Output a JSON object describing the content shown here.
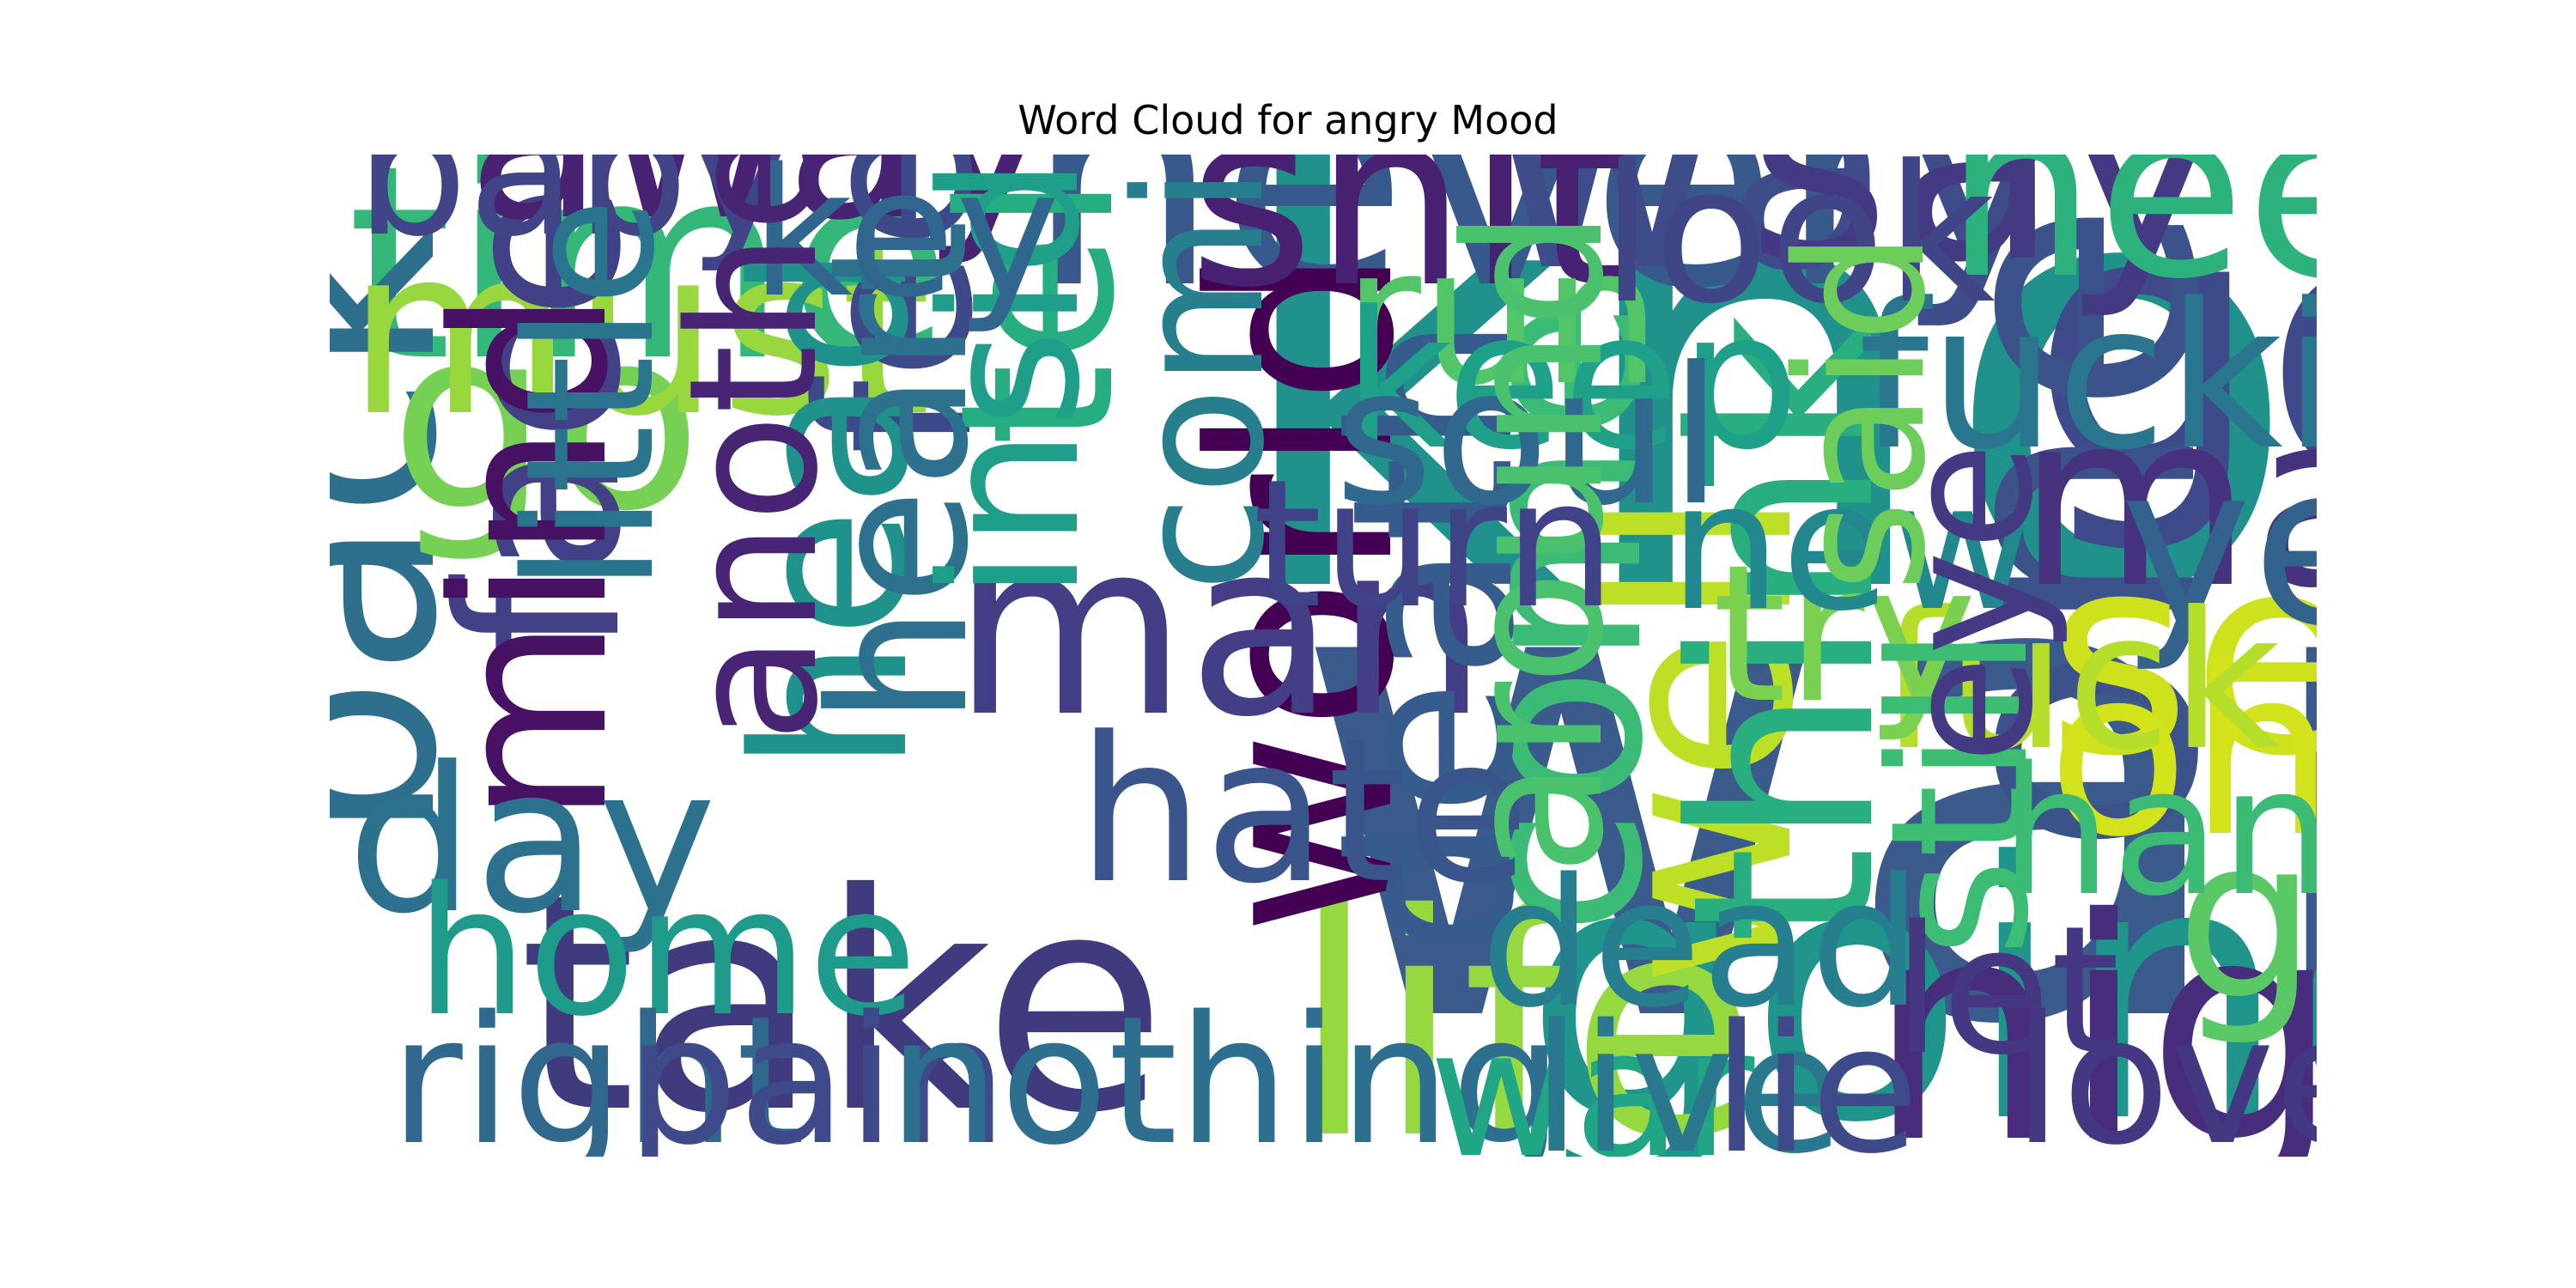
{
  "chart_data": {
    "type": "wordcloud",
    "title": "Word Cloud for angry Mood",
    "words": [
      {
        "text": "want",
        "weight": 100,
        "color": "#3b5b8c"
      },
      {
        "text": "know",
        "weight": 78,
        "color": "#21918c"
      },
      {
        "text": "got",
        "weight": 30,
        "color": "#3e4a89"
      },
      {
        "text": "one",
        "weight": 28,
        "color": "#3b528b"
      },
      {
        "text": "going",
        "weight": 28,
        "color": "#1f958b"
      },
      {
        "text": "never",
        "weight": 21,
        "color": "#38598c"
      },
      {
        "text": "life",
        "weight": 21,
        "color": "#95d840"
      },
      {
        "text": "night",
        "weight": 21,
        "color": "#472d7b"
      },
      {
        "text": "take",
        "weight": 20,
        "color": "#3f3b7e"
      },
      {
        "text": "way",
        "weight": 18,
        "color": "#3e4c8a"
      },
      {
        "text": "say",
        "weight": 17,
        "color": "#443983"
      },
      {
        "text": "see",
        "weight": 17,
        "color": "#cde11d"
      },
      {
        "text": "time",
        "weight": 16,
        "color": "#35b779"
      },
      {
        "text": "back",
        "weight": 15,
        "color": "#2e6f8e"
      },
      {
        "text": "go",
        "weight": 14,
        "color": "#75d054"
      },
      {
        "text": "world",
        "weight": 14,
        "color": "#440154"
      },
      {
        "text": "well",
        "weight": 14,
        "color": "#bddf26"
      },
      {
        "text": "think",
        "weight": 14,
        "color": "#29af7f"
      },
      {
        "text": "shit",
        "weight": 13,
        "color": "#482173"
      },
      {
        "text": "need",
        "weight": 13,
        "color": "#2db27d"
      },
      {
        "text": "make",
        "weight": 13,
        "color": "#46327e"
      },
      {
        "text": "man",
        "weight": 13,
        "color": "#433e85"
      },
      {
        "text": "must",
        "weight": 12,
        "color": "#98d83e"
      },
      {
        "text": "come",
        "weight": 12,
        "color": "#3bbb75"
      },
      {
        "text": "oh",
        "weight": 12,
        "color": "#d2e21b"
      },
      {
        "text": "face",
        "weight": 11,
        "color": "#424086"
      },
      {
        "text": "away",
        "weight": 11,
        "color": "#482374"
      },
      {
        "text": "death",
        "weight": 11,
        "color": "#365c8d"
      },
      {
        "text": "yeah",
        "weight": 11,
        "color": "#33638d"
      },
      {
        "text": "god",
        "weight": 11,
        "color": "#5ac864"
      },
      {
        "text": "feel",
        "weight": 10,
        "color": "#3e4989"
      },
      {
        "text": "tell",
        "weight": 10,
        "color": "#26ad81"
      },
      {
        "text": "head",
        "weight": 10,
        "color": "#20928c"
      },
      {
        "text": "mind",
        "weight": 10,
        "color": "#471164"
      },
      {
        "text": "day",
        "weight": 9,
        "color": "#2c728e"
      },
      {
        "text": "fucking",
        "weight": 9,
        "color": "#2a768e"
      },
      {
        "text": "hate",
        "weight": 9,
        "color": "#3a548c"
      },
      {
        "text": "run",
        "weight": 8,
        "color": "#52c569"
      },
      {
        "text": "keep",
        "weight": 8,
        "color": "#1fa088"
      },
      {
        "text": "soul",
        "weight": 8,
        "color": "#31688e"
      },
      {
        "text": "look",
        "weight": 8,
        "color": "#404588"
      },
      {
        "text": "heart",
        "weight": 8,
        "color": "#2d718e"
      },
      {
        "text": "inside",
        "weight": 8,
        "color": "#1f9e89"
      },
      {
        "text": "fuck",
        "weight": 8,
        "color": "#b5de2b"
      },
      {
        "text": "try",
        "weight": 8,
        "color": "#7ad151"
      },
      {
        "text": "around",
        "weight": 8,
        "color": "#4ac16d"
      },
      {
        "text": "still",
        "weight": 8,
        "color": "#3dbc74"
      },
      {
        "text": "coming",
        "weight": 7,
        "color": "#277f8e"
      },
      {
        "text": "turn",
        "weight": 7,
        "color": "#404387"
      },
      {
        "text": "baby",
        "weight": 7,
        "color": "#414487"
      },
      {
        "text": "little",
        "weight": 7,
        "color": "#2b748e"
      },
      {
        "text": "key",
        "weight": 7,
        "color": "#31668e"
      },
      {
        "text": "new",
        "weight": 7,
        "color": "#23888e"
      },
      {
        "text": "home",
        "weight": 7,
        "color": "#1e9b8a"
      },
      {
        "text": "right",
        "weight": 7,
        "color": "#31688e"
      },
      {
        "text": "pain",
        "weight": 7,
        "color": "#3e4a89"
      },
      {
        "text": "nothing",
        "weight": 7,
        "color": "#2e6e8e"
      },
      {
        "text": "another",
        "weight": 7,
        "color": "#482475"
      },
      {
        "text": "said",
        "weight": 7,
        "color": "#6ccd5a"
      },
      {
        "text": "eye",
        "weight": 7,
        "color": "#443a83"
      },
      {
        "text": "hand",
        "weight": 7,
        "color": "#3cbb75"
      },
      {
        "text": "let",
        "weight": 7,
        "color": "#453781"
      },
      {
        "text": "love",
        "weight": 7,
        "color": "#453882"
      },
      {
        "text": "dead",
        "weight": 7,
        "color": "#277e8e"
      },
      {
        "text": "war",
        "weight": 7,
        "color": "#21a685"
      },
      {
        "text": "live",
        "weight": 7,
        "color": "#2a788e"
      },
      {
        "text": "lie",
        "weight": 7,
        "color": "#3e4a89"
      }
    ]
  }
}
